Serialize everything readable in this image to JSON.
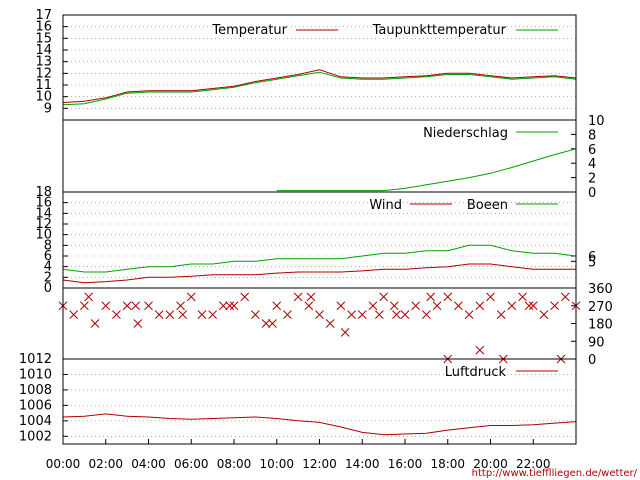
{
  "chart_data": {
    "type": "line",
    "source_url": "http://www.tiefflliegen.de/wetter/",
    "x_ticks": [
      "00:00",
      "02:00",
      "04:00",
      "06:00",
      "08:00",
      "10:00",
      "12:00",
      "14:00",
      "16:00",
      "18:00",
      "20:00",
      "22:00"
    ],
    "x_range_hours": [
      0,
      24
    ],
    "colors": {
      "red": "#b00000",
      "green": "#00a000",
      "grid": "#888888"
    },
    "panels": [
      {
        "id": "temperature",
        "ylim": [
          8,
          17
        ],
        "left_ticks": [
          "9",
          "10",
          "11",
          "12",
          "13",
          "14",
          "15",
          "16",
          "17"
        ],
        "right_ticks": [],
        "grid": true,
        "series": [
          {
            "name": "Temperatur",
            "color": "#b00000",
            "x": [
              0,
              1,
              2,
              3,
              4,
              5,
              6,
              7,
              8,
              9,
              10,
              11,
              12,
              13,
              14,
              15,
              16,
              17,
              18,
              19,
              20,
              21,
              22,
              23,
              24
            ],
            "y": [
              9.5,
              9.6,
              9.9,
              10.4,
              10.5,
              10.5,
              10.5,
              10.7,
              10.9,
              11.3,
              11.6,
              11.9,
              12.3,
              11.7,
              11.6,
              11.6,
              11.7,
              11.8,
              12.0,
              12.0,
              11.8,
              11.6,
              11.7,
              11.8,
              11.6
            ]
          },
          {
            "name": "Taupunkttemperatur",
            "color": "#00a000",
            "x": [
              0,
              1,
              2,
              3,
              4,
              5,
              6,
              7,
              8,
              9,
              10,
              11,
              12,
              13,
              14,
              15,
              16,
              17,
              18,
              19,
              20,
              21,
              22,
              23,
              24
            ],
            "y": [
              9.3,
              9.4,
              9.8,
              10.3,
              10.4,
              10.4,
              10.4,
              10.6,
              10.8,
              11.2,
              11.5,
              11.8,
              12.1,
              11.6,
              11.5,
              11.5,
              11.6,
              11.7,
              11.9,
              11.9,
              11.7,
              11.5,
              11.6,
              11.7,
              11.5
            ]
          }
        ]
      },
      {
        "id": "precipitation",
        "ylim": [
          0,
          10
        ],
        "left_ticks": [],
        "right_ticks": [
          "0",
          "2",
          "4",
          "6",
          "8",
          "10"
        ],
        "grid": false,
        "series": [
          {
            "name": "Niederschlag",
            "color": "#00a000",
            "x": [
              10,
              15,
              16,
              17,
              18,
              19,
              20,
              21,
              22,
              23,
              24
            ],
            "y": [
              0.2,
              0.2,
              0.5,
              1.0,
              1.5,
              2.0,
              2.6,
              3.4,
              4.3,
              5.2,
              6.0
            ]
          }
        ]
      },
      {
        "id": "wind",
        "ylim": [
          0,
          18
        ],
        "left_ticks": [
          "0",
          "2",
          "4",
          "6",
          "8",
          "10",
          "12",
          "14",
          "16",
          "18"
        ],
        "right_ticks": [
          "5",
          "6"
        ],
        "grid": true,
        "series": [
          {
            "name": "Wind",
            "color": "#b00000",
            "x": [
              0,
              1,
              2,
              3,
              4,
              5,
              6,
              7,
              8,
              9,
              10,
              11,
              12,
              13,
              14,
              15,
              16,
              17,
              18,
              19,
              20,
              21,
              22,
              23,
              24
            ],
            "y": [
              1.5,
              1.0,
              1.2,
              1.5,
              2.0,
              2.0,
              2.2,
              2.5,
              2.5,
              2.5,
              2.8,
              3.0,
              3.0,
              3.0,
              3.2,
              3.5,
              3.5,
              3.8,
              4.0,
              4.5,
              4.5,
              4.0,
              3.5,
              3.5,
              3.5
            ]
          },
          {
            "name": "Boeen",
            "color": "#00a000",
            "x": [
              0,
              1,
              2,
              3,
              4,
              5,
              6,
              7,
              8,
              9,
              10,
              11,
              12,
              13,
              14,
              15,
              16,
              17,
              18,
              19,
              20,
              21,
              22,
              23,
              24
            ],
            "y": [
              3.5,
              3.0,
              3.0,
              3.5,
              4.0,
              4.0,
              4.5,
              4.5,
              5.0,
              5.0,
              5.5,
              5.5,
              5.5,
              5.5,
              6.0,
              6.5,
              6.5,
              7.0,
              7.0,
              8.0,
              8.0,
              7.0,
              6.5,
              6.5,
              6.0
            ]
          }
        ]
      },
      {
        "id": "wind_direction",
        "type": "scatter",
        "ylim": [
          0,
          360
        ],
        "left_ticks": [],
        "right_ticks": [
          "0",
          "90",
          "180",
          "270",
          "360"
        ],
        "grid": false,
        "series": [
          {
            "name": "",
            "color": "#b00000",
            "x": [
              0.0,
              0.5,
              1.0,
              1.5,
              2.0,
              2.5,
              3.0,
              3.5,
              4.0,
              4.5,
              5.0,
              5.5,
              6.0,
              6.5,
              7.0,
              7.5,
              8.0,
              8.5,
              9.0,
              9.5,
              10.0,
              10.5,
              11.0,
              11.5,
              12.0,
              12.5,
              13.0,
              13.5,
              14.0,
              14.5,
              15.0,
              15.5,
              16.0,
              16.5,
              17.0,
              17.5,
              18.0,
              18.5,
              19.0,
              19.5,
              20.0,
              20.5,
              21.0,
              21.5,
              22.0,
              22.5,
              23.0,
              23.5,
              24.0,
              1.2,
              3.4,
              5.6,
              7.8,
              9.8,
              11.6,
              13.2,
              14.8,
              18.0,
              19.5,
              20.6,
              23.3,
              15.6,
              17.2,
              21.8
            ],
            "y": [
              270,
              225,
              270,
              180,
              270,
              225,
              270,
              180,
              270,
              225,
              225,
              270,
              315,
              225,
              225,
              270,
              270,
              315,
              225,
              180,
              270,
              225,
              315,
              270,
              225,
              180,
              270,
              225,
              225,
              270,
              315,
              270,
              225,
              270,
              225,
              270,
              315,
              270,
              225,
              270,
              315,
              225,
              270,
              315,
              270,
              225,
              270,
              315,
              270,
              315,
              270,
              225,
              270,
              180,
              315,
              135,
              225,
              0,
              45,
              0,
              0,
              225,
              315,
              270
            ]
          }
        ]
      },
      {
        "id": "pressure",
        "ylim": [
          1001,
          1012
        ],
        "left_ticks": [
          "1002",
          "1004",
          "1006",
          "1008",
          "1010",
          "1012"
        ],
        "right_ticks": [],
        "grid": true,
        "series": [
          {
            "name": "Luftdruck",
            "color": "#b00000",
            "x": [
              0,
              1,
              2,
              3,
              4,
              5,
              6,
              7,
              8,
              9,
              10,
              11,
              12,
              13,
              14,
              15,
              16,
              17,
              18,
              19,
              20,
              21,
              22,
              23,
              24
            ],
            "y": [
              1004.5,
              1004.6,
              1004.9,
              1004.6,
              1004.5,
              1004.3,
              1004.2,
              1004.3,
              1004.4,
              1004.5,
              1004.3,
              1004.0,
              1003.8,
              1003.2,
              1002.5,
              1002.2,
              1002.3,
              1002.4,
              1002.8,
              1003.1,
              1003.4,
              1003.4,
              1003.5,
              1003.7,
              1003.9
            ]
          }
        ]
      }
    ]
  }
}
